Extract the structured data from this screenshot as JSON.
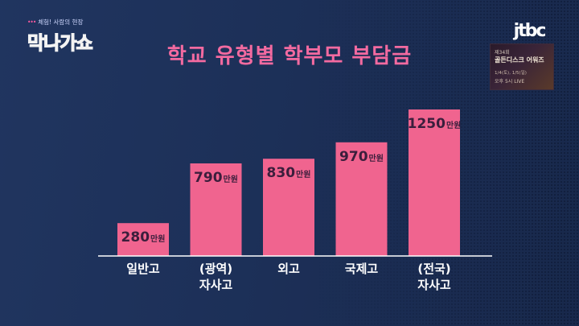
{
  "show": {
    "subtitle": "체험! 사람의 현장",
    "title": "막나가쇼"
  },
  "channel": {
    "logo": "jtbc"
  },
  "promo": {
    "line1": "제34회",
    "line2": "골든디스크 어워즈",
    "line3": "1/4(토), 1/5(일)",
    "line4": "오후 5시 LIVE"
  },
  "chart_data": {
    "type": "bar",
    "title": "학교 유형별 학부모 부담금",
    "categories": [
      [
        "일반고"
      ],
      [
        "(광역)",
        "자사고"
      ],
      [
        "외고"
      ],
      [
        "국제고"
      ],
      [
        "(전국)",
        "자사고"
      ]
    ],
    "values": [
      280,
      790,
      830,
      970,
      1250
    ],
    "value_unit": "만원",
    "ylim": [
      0,
      1300
    ],
    "grid": false,
    "colors": {
      "bar": "#f0648f",
      "value_text": "#3b1e3c",
      "label_text": "#ffffff",
      "title": "#f36aa0",
      "background": "#1b2f55"
    }
  }
}
